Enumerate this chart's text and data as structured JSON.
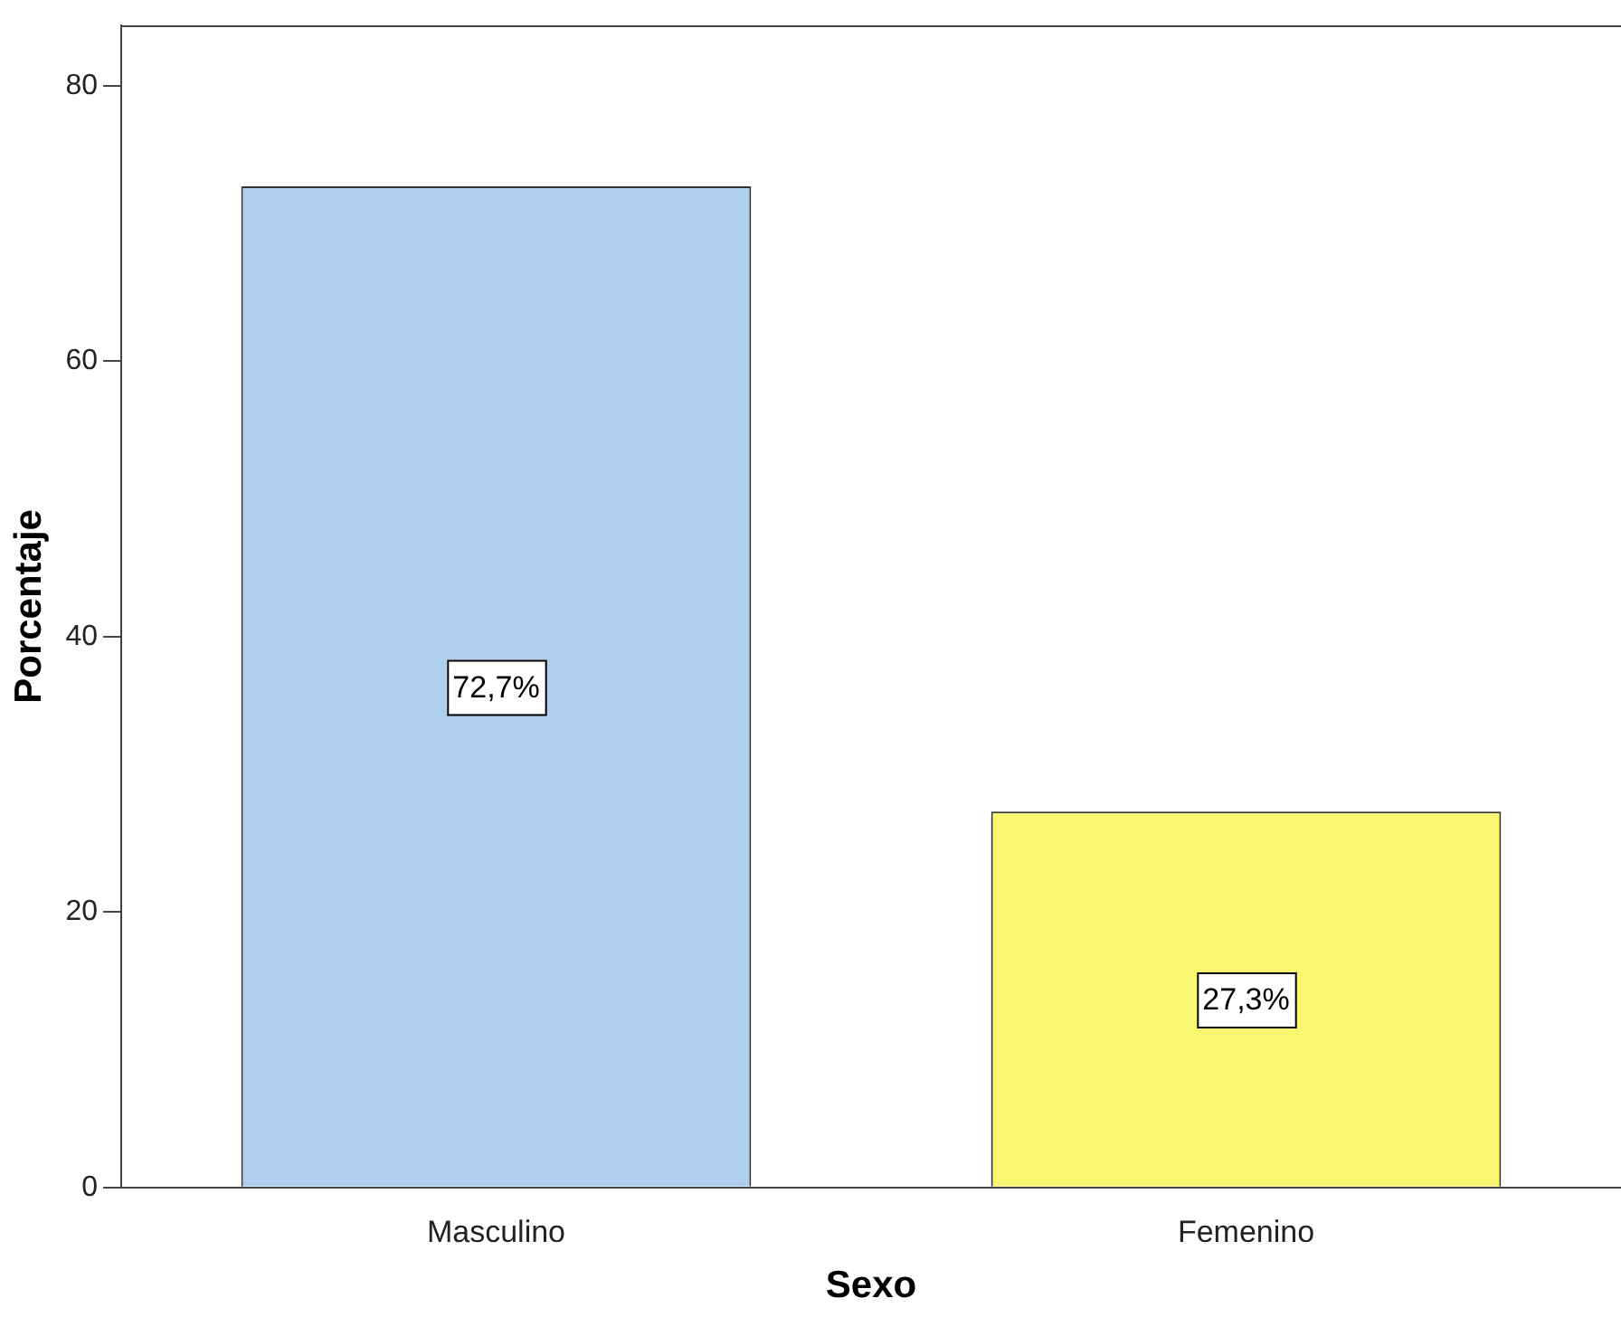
{
  "chart_data": {
    "type": "bar",
    "xlabel": "Sexo",
    "ylabel": "Porcentaje",
    "categories": [
      "Masculino",
      "Femenino"
    ],
    "values": [
      72.7,
      27.3
    ],
    "colors": [
      "#aecfee",
      "#f9f771"
    ],
    "value_labels": [
      "72,7%",
      "27,3%"
    ],
    "ylim": [
      0,
      84.4
    ],
    "yticks": [
      0,
      20,
      40,
      60,
      80
    ],
    "grid": false,
    "legend": false
  }
}
